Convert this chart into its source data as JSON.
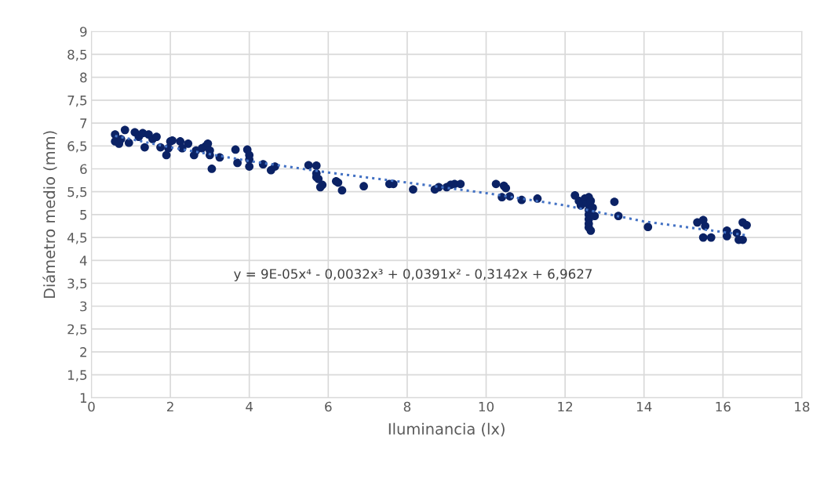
{
  "chart_data": {
    "type": "scatter",
    "xlabel": "Iluminancia (lx)",
    "ylabel": "Diámetro medio (mm)",
    "annotations": [
      "y = 9E-05x⁴ - 0,0032x³ + 0,0391x² - 0,3142x + 6,9627"
    ],
    "xlim": [
      0,
      18
    ],
    "xticks": [
      0,
      2,
      4,
      6,
      8,
      10,
      12,
      14,
      16,
      18
    ],
    "ylim": [
      1,
      9
    ],
    "yticks": [
      1,
      {
        "value": 1.5,
        "label": "1,5"
      },
      2,
      {
        "value": 2.5,
        "label": "2,5"
      },
      3,
      {
        "value": 3.5,
        "label": "3,5"
      },
      4,
      {
        "value": 4.5,
        "label": "4,5"
      },
      5,
      {
        "value": 5.5,
        "label": "5,5"
      },
      6,
      {
        "value": 6.5,
        "label": "6,5"
      },
      7,
      {
        "value": 7.5,
        "label": "7,5"
      },
      8,
      {
        "value": 8.5,
        "label": "8,5"
      },
      9
    ],
    "grid": true,
    "series": [
      {
        "color": "#0b2265",
        "marker": "circle",
        "x": [
          0.6,
          0.6,
          0.7,
          0.75,
          0.85,
          0.95,
          1.1,
          1.2,
          1.3,
          1.35,
          1.45,
          1.55,
          1.65,
          1.75,
          1.9,
          1.95,
          2.0,
          2.05,
          2.25,
          2.3,
          2.45,
          2.6,
          2.65,
          2.8,
          2.9,
          2.95,
          3.0,
          3.0,
          3.05,
          3.25,
          3.65,
          3.7,
          3.95,
          4.0,
          4.0,
          4.0,
          4.35,
          4.55,
          4.65,
          5.5,
          5.7,
          5.7,
          5.7,
          5.75,
          5.85,
          5.8,
          6.2,
          6.25,
          6.35,
          6.9,
          7.55,
          7.65,
          8.15,
          8.7,
          8.8,
          9.0,
          9.1,
          9.2,
          9.35,
          10.25,
          10.4,
          10.45,
          10.5,
          10.6,
          10.9,
          11.3,
          12.25,
          12.35,
          12.4,
          12.5,
          12.55,
          12.6,
          12.65,
          12.6,
          12.6,
          12.6,
          12.6,
          12.6,
          12.65,
          12.7,
          12.75,
          13.25,
          13.35,
          14.1,
          15.35,
          15.5,
          15.55,
          15.5,
          15.7,
          16.1,
          16.1,
          16.35,
          16.4,
          16.5,
          16.5,
          16.6
        ],
        "values": [
          6.75,
          6.6,
          6.55,
          6.65,
          6.85,
          6.57,
          6.8,
          6.7,
          6.78,
          6.47,
          6.75,
          6.65,
          6.7,
          6.47,
          6.3,
          6.45,
          6.6,
          6.62,
          6.6,
          6.45,
          6.55,
          6.3,
          6.4,
          6.45,
          6.5,
          6.55,
          6.4,
          6.3,
          6.0,
          6.25,
          6.42,
          6.13,
          6.42,
          6.3,
          6.2,
          6.05,
          6.1,
          5.97,
          6.05,
          6.08,
          6.07,
          5.9,
          5.82,
          5.78,
          5.65,
          5.6,
          5.73,
          5.7,
          5.53,
          5.62,
          5.67,
          5.67,
          5.55,
          5.55,
          5.6,
          5.6,
          5.65,
          5.67,
          5.67,
          5.67,
          5.38,
          5.63,
          5.58,
          5.4,
          5.32,
          5.35,
          5.42,
          5.3,
          5.2,
          5.35,
          5.25,
          5.38,
          5.3,
          5.1,
          5.0,
          4.9,
          4.8,
          4.72,
          4.65,
          5.15,
          4.97,
          5.28,
          4.97,
          4.73,
          4.83,
          4.88,
          4.75,
          4.5,
          4.5,
          4.65,
          4.53,
          4.6,
          4.45,
          4.83,
          4.45,
          4.77
        ]
      },
      {
        "type": "line",
        "color": "#4472c4",
        "line_style": "dotted",
        "marker": "none",
        "x": [
          0.6,
          2,
          4,
          6,
          8,
          10,
          12,
          14,
          16.6
        ],
        "values": [
          6.72,
          6.47,
          6.17,
          5.92,
          5.7,
          5.47,
          5.2,
          4.85,
          4.55
        ]
      }
    ]
  }
}
